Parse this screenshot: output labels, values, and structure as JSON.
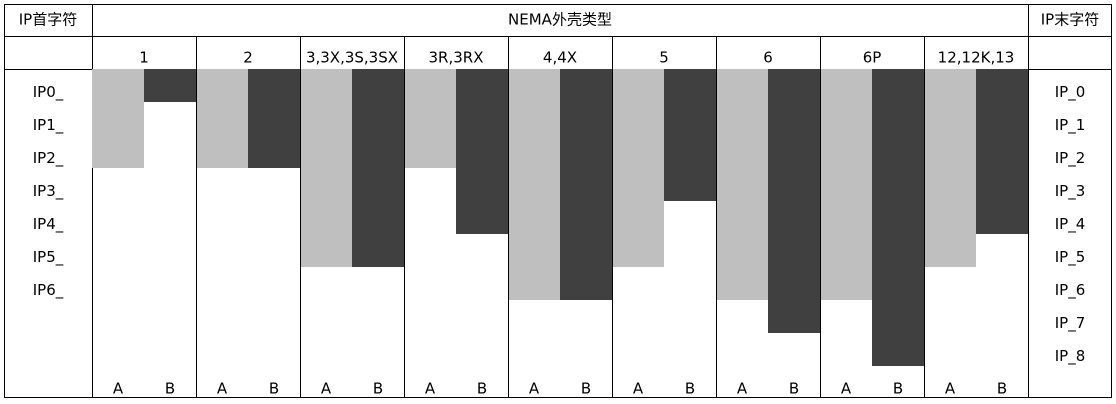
{
  "chart_data": {
    "type": "bar",
    "title": "NEMA外壳类型",
    "left_axis_label": "IP首字符",
    "right_axis_label": "IP末字符",
    "categories": [
      "1",
      "2",
      "3,3X,3S,3SX",
      "3R,3RX",
      "4,4X",
      "5",
      "6",
      "6P",
      "12,12K,13"
    ],
    "left_ticks": [
      "IP0_",
      "IP1_",
      "IP2_",
      "IP3_",
      "IP4_",
      "IP5_",
      "IP6_"
    ],
    "right_ticks": [
      "IP_0",
      "IP_1",
      "IP_2",
      "IP_3",
      "IP_4",
      "IP_5",
      "IP_6",
      "IP_7",
      "IP_8"
    ],
    "series": [
      {
        "name": "A",
        "color": "#bfbfbf",
        "values": [
          2,
          2,
          5,
          2,
          6,
          5,
          6,
          6,
          5
        ]
      },
      {
        "name": "B",
        "color": "#404040",
        "values": [
          0,
          2,
          5,
          4,
          6,
          3,
          7,
          8,
          4
        ]
      }
    ]
  }
}
